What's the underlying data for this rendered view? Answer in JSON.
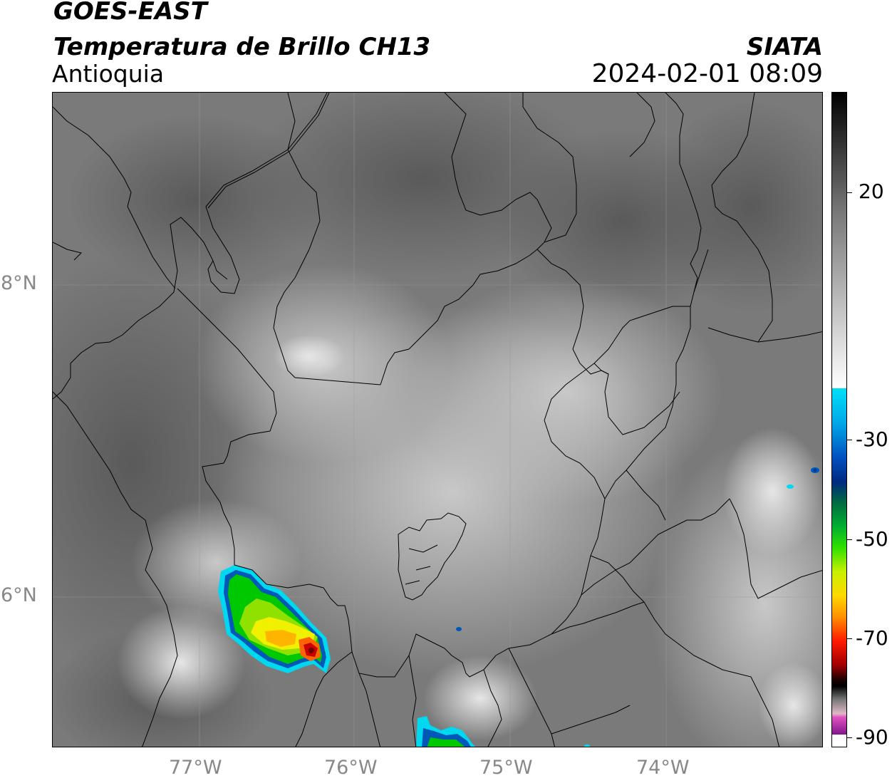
{
  "header": {
    "satellite": "GOES-EAST",
    "product": "Temperatura de Brillo CH13",
    "region": "Antioquia",
    "organization": "SIATA",
    "datetime": "2024-02-01 08:09"
  },
  "axes": {
    "lat_labels": [
      "8°N",
      "6°N"
    ],
    "lon_labels": [
      "77°W",
      "76°W",
      "75°W",
      "74°W"
    ]
  },
  "colorbar": {
    "ticks": [
      "20",
      "-30",
      "-50",
      "-70",
      "-90"
    ],
    "colors": {
      "black": "#000000",
      "white": "#ffffff",
      "cyan": "#00d8f0",
      "blue": "#003c9c",
      "green": "#00c800",
      "yellow": "#f0f000",
      "orange": "#ff9600",
      "red": "#e60000",
      "darkred": "#6e0000",
      "magenta": "#e040b0",
      "purple": "#8a1a8a"
    }
  }
}
